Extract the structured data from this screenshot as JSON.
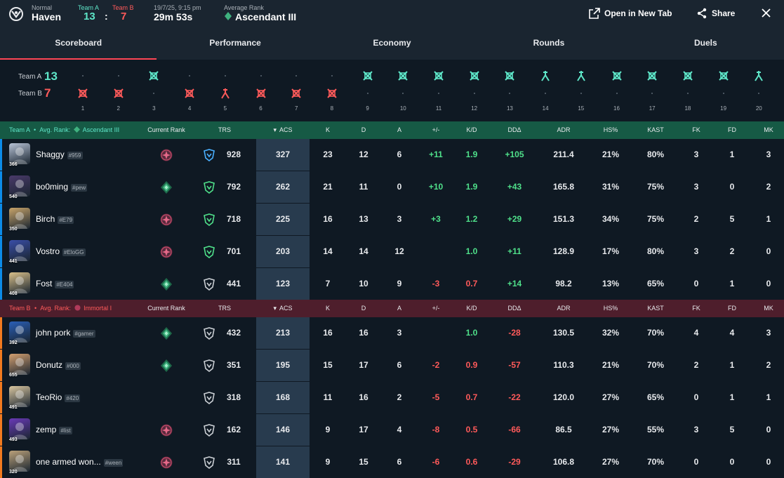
{
  "header": {
    "mode": "Normal",
    "map": "Haven",
    "team_a_label": "Team A",
    "team_b_label": "Team B",
    "team_a_score": "13",
    "team_b_score": "7",
    "score_sep": ":",
    "datetime": "19/7/25, 9:15 pm",
    "duration": "29m 53s",
    "avg_rank_label": "Average Rank",
    "avg_rank": "Ascendant III",
    "open_new_tab": "Open in New Tab",
    "share": "Share"
  },
  "tabs": [
    "Scoreboard",
    "Performance",
    "Economy",
    "Rounds",
    "Duels"
  ],
  "colors": {
    "team_a": "#5ee6c8",
    "team_b": "#ff5a5a",
    "accent": "#ff4655",
    "team_a_bar": "#0c8ce8",
    "team_b_bar": "#f27a1f"
  },
  "timeline": {
    "team_a_label": "Team A",
    "team_a_score": "13",
    "team_b_label": "Team B",
    "team_b_score": "7",
    "rounds": [
      {
        "n": "1",
        "winner": "B",
        "icon": "elimination"
      },
      {
        "n": "2",
        "winner": "B",
        "icon": "elimination"
      },
      {
        "n": "3",
        "winner": "A",
        "icon": "elimination"
      },
      {
        "n": "4",
        "winner": "B",
        "icon": "elimination"
      },
      {
        "n": "5",
        "winner": "B",
        "icon": "defuse"
      },
      {
        "n": "6",
        "winner": "B",
        "icon": "elimination"
      },
      {
        "n": "7",
        "winner": "B",
        "icon": "elimination"
      },
      {
        "n": "8",
        "winner": "B",
        "icon": "elimination"
      },
      {
        "n": "9",
        "winner": "A",
        "icon": "elimination"
      },
      {
        "n": "10",
        "winner": "A",
        "icon": "elimination"
      },
      {
        "n": "11",
        "winner": "A",
        "icon": "elimination"
      },
      {
        "n": "12",
        "winner": "A",
        "icon": "elimination"
      },
      {
        "n": "13",
        "winner": "A",
        "icon": "elimination"
      },
      {
        "n": "14",
        "winner": "A",
        "icon": "defuse"
      },
      {
        "n": "15",
        "winner": "A",
        "icon": "defuse"
      },
      {
        "n": "16",
        "winner": "A",
        "icon": "elimination"
      },
      {
        "n": "17",
        "winner": "A",
        "icon": "elimination"
      },
      {
        "n": "18",
        "winner": "A",
        "icon": "elimination"
      },
      {
        "n": "19",
        "winner": "A",
        "icon": "elimination"
      },
      {
        "n": "20",
        "winner": "A",
        "icon": "defuse"
      }
    ]
  },
  "columns": [
    "Current Rank",
    "TRS",
    "ACS",
    "K",
    "D",
    "A",
    "+/-",
    "K/D",
    "DDΔ",
    "ADR",
    "HS%",
    "KAST",
    "FK",
    "FD",
    "MK"
  ],
  "team_a": {
    "label": "Team A",
    "sep": "•",
    "avg_rank_label": "Avg. Rank:",
    "avg_rank": "Ascendant III",
    "players": [
      {
        "name": "Shaggy",
        "tag": "#959",
        "level": "366",
        "rank": "immortal",
        "trs_icon": "blue",
        "trs": "928",
        "acs": "327",
        "k": "23",
        "d": "12",
        "a": "6",
        "pm": "+11",
        "kd": "1.9",
        "dd": "+105",
        "adr": "211.4",
        "hs": "21%",
        "kast": "80%",
        "fk": "3",
        "fd": "1",
        "mk": "3"
      },
      {
        "name": "bo0ming",
        "tag": "#pew",
        "level": "540",
        "rank": "ascendant",
        "trs_icon": "green",
        "trs": "792",
        "acs": "262",
        "k": "21",
        "d": "11",
        "a": "0",
        "pm": "+10",
        "kd": "1.9",
        "dd": "+43",
        "adr": "165.8",
        "hs": "31%",
        "kast": "75%",
        "fk": "3",
        "fd": "0",
        "mk": "2"
      },
      {
        "name": "Birch",
        "tag": "#E79",
        "level": "350",
        "rank": "immortal",
        "trs_icon": "green",
        "trs": "718",
        "acs": "225",
        "k": "16",
        "d": "13",
        "a": "3",
        "pm": "+3",
        "kd": "1.2",
        "dd": "+29",
        "adr": "151.3",
        "hs": "34%",
        "kast": "75%",
        "fk": "2",
        "fd": "5",
        "mk": "1"
      },
      {
        "name": "Vostro",
        "tag": "#EloGG",
        "level": "441",
        "rank": "immortal",
        "trs_icon": "green",
        "trs": "701",
        "acs": "203",
        "k": "14",
        "d": "14",
        "a": "12",
        "pm": "",
        "kd": "1.0",
        "dd": "+11",
        "adr": "128.9",
        "hs": "17%",
        "kast": "80%",
        "fk": "3",
        "fd": "2",
        "mk": "0"
      },
      {
        "name": "Fost",
        "tag": "#E404",
        "level": "408",
        "rank": "ascendant",
        "trs_icon": "gray",
        "trs": "441",
        "acs": "123",
        "k": "7",
        "d": "10",
        "a": "9",
        "pm": "-3",
        "kd": "0.7",
        "dd": "+14",
        "adr": "98.2",
        "hs": "13%",
        "kast": "65%",
        "fk": "0",
        "fd": "1",
        "mk": "0"
      }
    ]
  },
  "team_b": {
    "label": "Team B",
    "sep": "•",
    "avg_rank_label": "Avg. Rank:",
    "avg_rank": "Immortal I",
    "players": [
      {
        "name": "john pork",
        "tag": "#gamer",
        "level": "392",
        "rank": "ascendant",
        "trs_icon": "gray",
        "trs": "432",
        "acs": "213",
        "k": "16",
        "d": "16",
        "a": "3",
        "pm": "",
        "kd": "1.0",
        "dd": "-28",
        "adr": "130.5",
        "hs": "32%",
        "kast": "70%",
        "fk": "4",
        "fd": "4",
        "mk": "3"
      },
      {
        "name": "Donutz",
        "tag": "#000",
        "level": "655",
        "rank": "ascendant",
        "trs_icon": "gray",
        "trs": "351",
        "acs": "195",
        "k": "15",
        "d": "17",
        "a": "6",
        "pm": "-2",
        "kd": "0.9",
        "dd": "-57",
        "adr": "110.3",
        "hs": "21%",
        "kast": "70%",
        "fk": "2",
        "fd": "1",
        "mk": "2"
      },
      {
        "name": "TeoRio",
        "tag": "#420",
        "level": "491",
        "rank": "",
        "trs_icon": "gray",
        "trs": "318",
        "acs": "168",
        "k": "11",
        "d": "16",
        "a": "2",
        "pm": "-5",
        "kd": "0.7",
        "dd": "-22",
        "adr": "120.0",
        "hs": "27%",
        "kast": "65%",
        "fk": "0",
        "fd": "1",
        "mk": "1"
      },
      {
        "name": "zemp",
        "tag": "#list",
        "level": "493",
        "rank": "immortal",
        "trs_icon": "gray",
        "trs": "162",
        "acs": "146",
        "k": "9",
        "d": "17",
        "a": "4",
        "pm": "-8",
        "kd": "0.5",
        "dd": "-66",
        "adr": "86.5",
        "hs": "27%",
        "kast": "55%",
        "fk": "3",
        "fd": "5",
        "mk": "0"
      },
      {
        "name": "one armed won...",
        "tag": "#ween",
        "level": "320",
        "rank": "immortal",
        "trs_icon": "gray",
        "trs": "311",
        "acs": "141",
        "k": "9",
        "d": "15",
        "a": "6",
        "pm": "-6",
        "kd": "0.6",
        "dd": "-29",
        "adr": "106.8",
        "hs": "27%",
        "kast": "70%",
        "fk": "0",
        "fd": "0",
        "mk": "0"
      }
    ]
  }
}
